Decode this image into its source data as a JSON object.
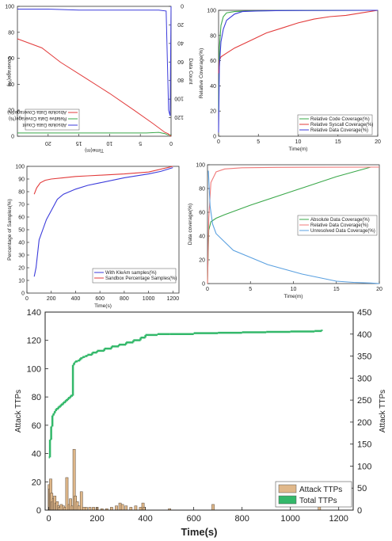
{
  "chart_data": [
    {
      "type": "line",
      "rotated_180": true,
      "xlabel": "Time(m)",
      "ylabel": "Coverage(%)",
      "ylabel2": "Data Count",
      "xlim": [
        0,
        25
      ],
      "ylim": [
        0,
        100
      ],
      "y2lim": [
        0,
        140
      ],
      "xticks": [
        0,
        5,
        10,
        15,
        20
      ],
      "yticks": [
        0,
        20,
        40,
        60,
        80,
        100
      ],
      "y2ticks": [
        0,
        20,
        40,
        60,
        80,
        100,
        120
      ],
      "series": [
        {
          "name": "Absolute Data Count",
          "color": "#3b3bdb",
          "axis": "right",
          "x": [
            0,
            0.15,
            0.4,
            0.8,
            2,
            5,
            10,
            15,
            20,
            25
          ],
          "y": [
            0,
            118,
            112,
            5,
            4,
            4,
            4,
            4,
            3,
            3
          ]
        },
        {
          "name": "Relative Data Coverage(%)",
          "color": "#3aa84a",
          "axis": "left",
          "x": [
            0,
            0.5,
            1,
            2,
            4,
            8,
            12,
            16,
            20,
            25
          ],
          "y": [
            99,
            99,
            98,
            97,
            97.5,
            97.5,
            97.5,
            97.5,
            97.5,
            97.5
          ]
        },
        {
          "name": "Absolute Data Coverage(%)",
          "color": "#e23b3b",
          "axis": "left",
          "x": [
            0,
            0.5,
            1,
            3,
            6,
            10,
            14,
            18,
            21,
            25
          ],
          "y": [
            100,
            98,
            97,
            90,
            80,
            67,
            55,
            43,
            32,
            25
          ]
        }
      ]
    },
    {
      "type": "line",
      "xlabel": "Time(m)",
      "ylabel": "Relative Coverage(%)",
      "xlim": [
        0,
        20
      ],
      "ylim": [
        0,
        100
      ],
      "xticks": [
        0,
        5,
        10,
        15,
        20
      ],
      "yticks": [
        0,
        20,
        40,
        60,
        80,
        100
      ],
      "series": [
        {
          "name": "Relative Code Coverage(%)",
          "color": "#3aa84a",
          "x": [
            0,
            0.1,
            0.3,
            0.6,
            1,
            2,
            4,
            8,
            20
          ],
          "y": [
            20,
            70,
            88,
            95,
            98,
            99,
            99.5,
            99.8,
            100
          ]
        },
        {
          "name": "Relative Syscall Coverage(%)",
          "color": "#e23b3b",
          "x": [
            0,
            0.1,
            0.3,
            1,
            2,
            4,
            6,
            8,
            10,
            12,
            14,
            16,
            18,
            20
          ],
          "y": [
            50,
            60,
            63,
            66,
            70,
            76,
            82,
            86,
            90,
            93,
            95,
            96,
            98,
            100
          ]
        },
        {
          "name": "Relative Data Coverage(%)",
          "color": "#3b3bdb",
          "x": [
            0,
            0.1,
            0.3,
            0.6,
            1,
            2,
            3,
            5,
            8,
            20
          ],
          "y": [
            3,
            55,
            75,
            85,
            92,
            97,
            99,
            99.5,
            99.8,
            100
          ]
        }
      ]
    },
    {
      "type": "line",
      "xlabel": "Time(s)",
      "ylabel": "Percentage of Samples(%)",
      "xlim": [
        0,
        1250
      ],
      "ylim": [
        0,
        100
      ],
      "xticks": [
        0,
        200,
        400,
        600,
        800,
        1000,
        1200
      ],
      "yticks": [
        0,
        10,
        20,
        30,
        40,
        50,
        60,
        70,
        80,
        90,
        100
      ],
      "series": [
        {
          "name": "With KleAm samples(%)",
          "color": "#3b3bdb",
          "x": [
            60,
            75,
            100,
            130,
            160,
            200,
            250,
            300,
            400,
            500,
            600,
            800,
            1000,
            1100,
            1200
          ],
          "y": [
            13,
            20,
            42,
            50,
            58,
            65,
            74,
            78,
            82,
            85,
            87,
            91,
            94,
            96,
            99
          ]
        },
        {
          "name": "Sandbox Percentage Samples(%)",
          "color": "#e23b3b",
          "x": [
            60,
            80,
            110,
            150,
            200,
            300,
            400,
            500,
            600,
            800,
            1000,
            1200
          ],
          "y": [
            78,
            83,
            87,
            89,
            90,
            91,
            92,
            92.5,
            93,
            94,
            95.5,
            100
          ]
        }
      ]
    },
    {
      "type": "line",
      "xlabel": "Time(m)",
      "ylabel": "Data coverage(%)",
      "xlim": [
        0,
        20
      ],
      "ylim": [
        0,
        100
      ],
      "xticks": [
        0,
        5,
        10,
        15,
        20
      ],
      "yticks": [
        0,
        20,
        40,
        60,
        80,
        100
      ],
      "series": [
        {
          "name": "Absolute Data Coverage(%)",
          "color": "#3aa84a",
          "x": [
            0,
            0.15,
            0.4,
            1,
            2,
            5,
            10,
            15,
            19,
            20
          ],
          "y": [
            0,
            45,
            52,
            55,
            58,
            66,
            78,
            90,
            98,
            98
          ]
        },
        {
          "name": "Relative Data Coverage(%)",
          "color": "#f07a7a",
          "x": [
            0,
            0.15,
            0.4,
            1,
            2,
            4,
            8,
            20
          ],
          "y": [
            0,
            55,
            85,
            94,
            96.5,
            97.5,
            97.8,
            98
          ]
        },
        {
          "name": "Unresolved Data Coverage(%)",
          "color": "#5aa0e0",
          "x": [
            0.1,
            0.3,
            0.6,
            1,
            2,
            3,
            5,
            7,
            9,
            11,
            13,
            15,
            17,
            19,
            20
          ],
          "y": [
            95,
            65,
            50,
            42,
            35,
            28,
            22,
            16,
            12,
            8,
            5,
            2,
            1,
            0.5,
            0
          ]
        }
      ]
    },
    {
      "type": "bar",
      "xlabel": "Time(s)",
      "ylabel": "Attack TTPs",
      "ylabel2": "Attack TTPs",
      "xlim": [
        -15,
        1260
      ],
      "ylim": [
        0,
        140
      ],
      "y2lim": [
        0,
        450
      ],
      "xticks": [
        0,
        200,
        400,
        600,
        800,
        1000,
        1200
      ],
      "yticks": [
        0,
        20,
        40,
        60,
        80,
        100,
        120,
        140
      ],
      "y2ticks": [
        0,
        50,
        100,
        150,
        200,
        250,
        300,
        350,
        400,
        450
      ],
      "series": [
        {
          "name": "Attack TTPs",
          "color": "#e0b88a",
          "axis": "left",
          "x": [
            2,
            5,
            8,
            12,
            16,
            20,
            25,
            30,
            35,
            40,
            45,
            52,
            60,
            68,
            75,
            85,
            90,
            98,
            105,
            110,
            118,
            125,
            135,
            145,
            155,
            170,
            185,
            200,
            220,
            240,
            260,
            280,
            295,
            305,
            320,
            340,
            360,
            380,
            390,
            395,
            500,
            680,
            1120
          ],
          "values": [
            18,
            15,
            22,
            12,
            6,
            8,
            10,
            5,
            6,
            3,
            2,
            4,
            3,
            2,
            23,
            4,
            8,
            3,
            43,
            10,
            6,
            3,
            13,
            2,
            2,
            2,
            2,
            2,
            1,
            1,
            2,
            3,
            5,
            4,
            3,
            2,
            3,
            2,
            5,
            2,
            1,
            4,
            3
          ]
        },
        {
          "name": "Total TTPs",
          "color": "#33b86a",
          "axis": "right",
          "x": [
            0,
            5,
            10,
            15,
            20,
            25,
            30,
            40,
            50,
            60,
            70,
            80,
            90,
            100,
            105,
            110,
            120,
            130,
            140,
            150,
            160,
            180,
            200,
            230,
            260,
            290,
            320,
            350,
            380,
            400,
            450,
            500,
            600,
            700,
            800,
            900,
            1000,
            1100,
            1130
          ],
          "values": [
            120,
            160,
            190,
            215,
            220,
            225,
            230,
            235,
            240,
            245,
            250,
            255,
            260,
            330,
            335,
            338,
            340,
            345,
            348,
            350,
            353,
            358,
            362,
            367,
            372,
            376,
            381,
            386,
            392,
            398,
            400,
            400,
            402,
            403,
            404,
            405,
            406,
            407,
            410
          ]
        }
      ]
    }
  ]
}
